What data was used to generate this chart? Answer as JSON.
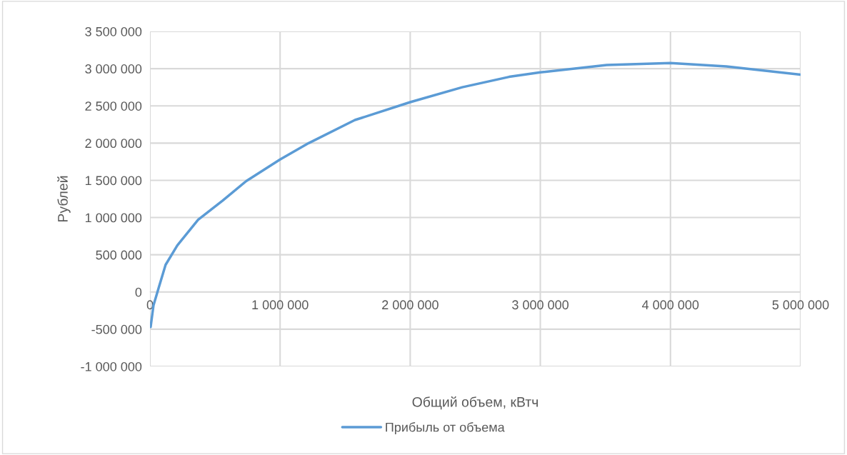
{
  "chart_data": {
    "type": "line",
    "xlabel": "Общий объем, кВтч",
    "ylabel": "Рублей",
    "series": [
      {
        "name": "Прибыль от объема",
        "color": "#5b9bd5",
        "x": [
          5000,
          27000,
          66000,
          120000,
          210000,
          370000,
          560000,
          740000,
          1000000,
          1220000,
          1575000,
          2000000,
          2400000,
          2760000,
          3000000,
          3510000,
          4000000,
          4430000,
          5000000
        ],
        "values": [
          -470000,
          -180000,
          50000,
          365000,
          625000,
          970000,
          1230000,
          1490000,
          1780000,
          2000000,
          2310000,
          2550000,
          2750000,
          2890000,
          2950000,
          3050000,
          3075000,
          3030000,
          2920000
        ]
      }
    ],
    "xlim": [
      0,
      5000000
    ],
    "xticks": [
      0,
      {
        "value": 1000000,
        "label": "1 000 000"
      },
      {
        "value": 2000000,
        "label": "2 000 000"
      },
      {
        "value": 3000000,
        "label": "3 000 000"
      },
      {
        "value": 4000000,
        "label": "4 000 000"
      },
      {
        "value": 5000000,
        "label": "5 000 000"
      }
    ],
    "ylim": [
      -1000000,
      3500000
    ],
    "yticks": [
      {
        "value": -1000000,
        "label": "-1 000 000"
      },
      {
        "value": -500000,
        "label": "-500 000"
      },
      0,
      {
        "value": 500000,
        "label": "500 000"
      },
      {
        "value": 1000000,
        "label": "1 000 000"
      },
      {
        "value": 1500000,
        "label": "1 500 000"
      },
      {
        "value": 2000000,
        "label": "2 000 000"
      },
      {
        "value": 2500000,
        "label": "2 500 000"
      },
      {
        "value": 3000000,
        "label": "3 000 000"
      },
      {
        "value": 3500000,
        "label": "3 500 000"
      }
    ],
    "grid": true,
    "legend": "bottom",
    "marker": "none",
    "line_style": "solid"
  }
}
